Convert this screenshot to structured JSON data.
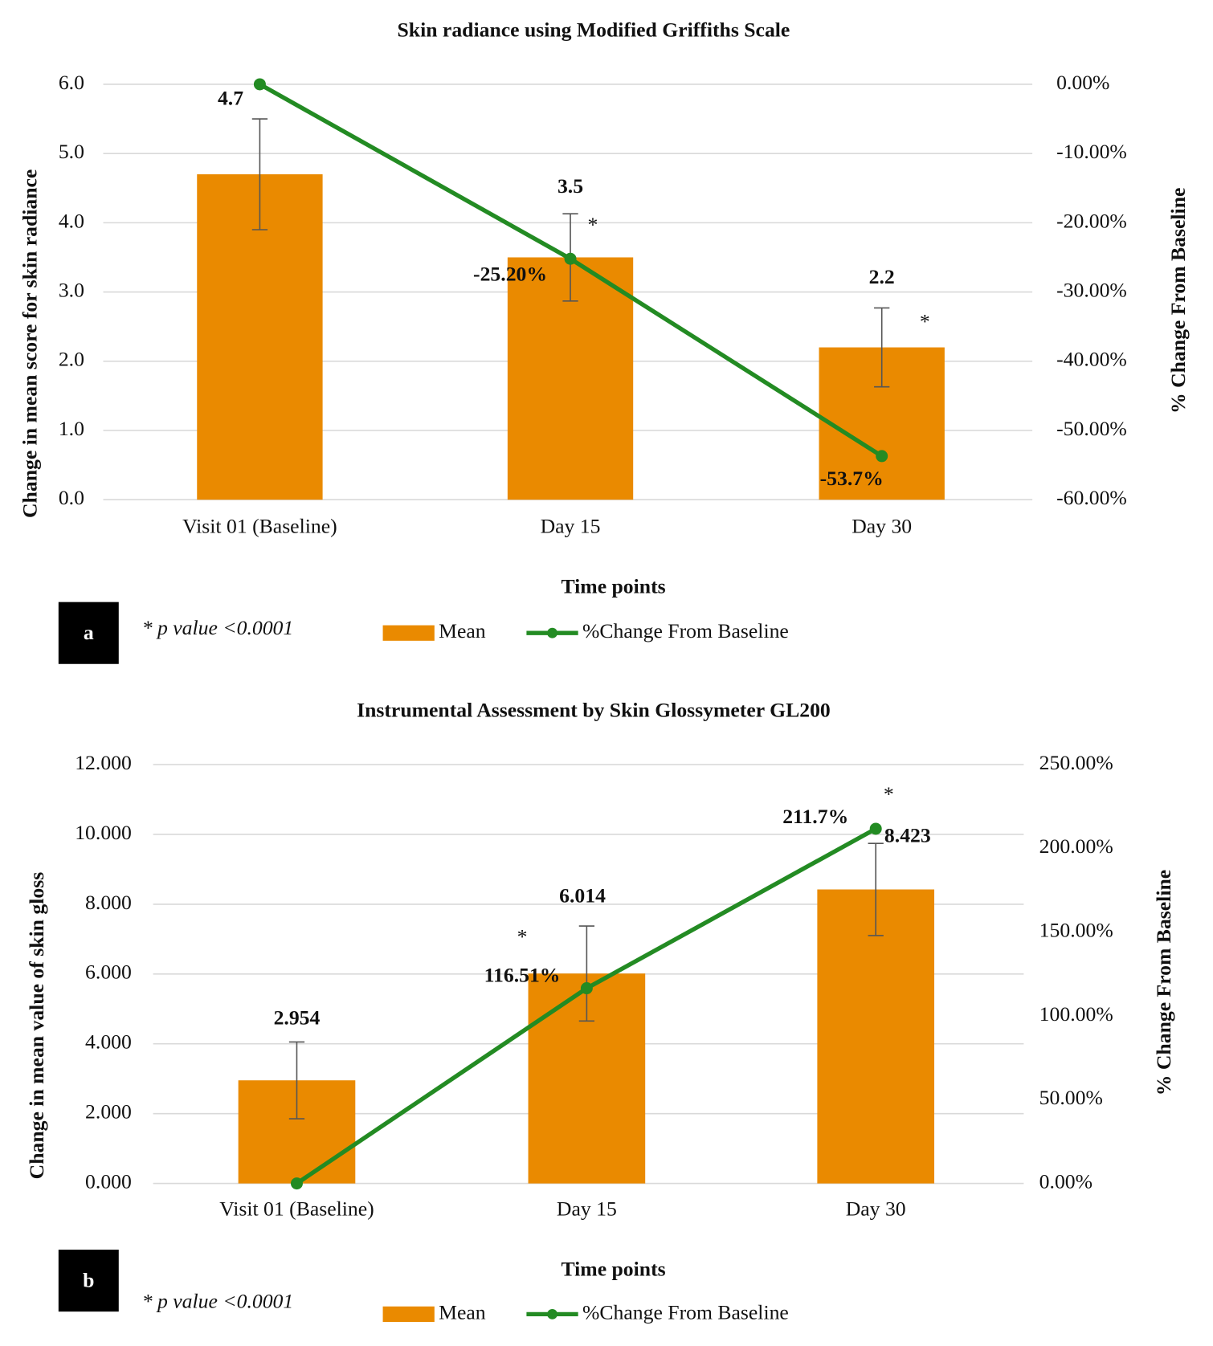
{
  "chart_data": [
    {
      "type": "bar",
      "title": "Skin radiance using Modified Griffiths Scale",
      "panel": "a",
      "note": "* p value <0.0001",
      "x_label": "Time points",
      "y_label": "Change in mean  score for skin radiance",
      "y2_label": "% Change From Baseline",
      "categories": [
        "Visit 01 (Baseline)",
        "Day 15",
        "Day 30"
      ],
      "significance": [
        null,
        "*",
        "*"
      ],
      "series": [
        {
          "name": "Mean",
          "type": "bar",
          "color": "#ea8a00",
          "values": [
            4.7,
            3.5,
            2.2
          ],
          "errors": [
            0.8,
            0.63,
            0.57
          ]
        },
        {
          "name": "%Change From Baseline",
          "type": "line",
          "axis": "y2",
          "color": "#238b23",
          "values": [
            0,
            -25.2,
            -53.7
          ],
          "value_labels": [
            null,
            "-25.20%",
            "-53.7%"
          ]
        }
      ],
      "ylim": [
        0,
        6
      ],
      "yticks": [
        {
          "value": 0,
          "label": "0.0"
        },
        {
          "value": 1,
          "label": "1.0"
        },
        {
          "value": 2,
          "label": "2.0"
        },
        {
          "value": 3,
          "label": "3.0"
        },
        {
          "value": 4,
          "label": "4.0"
        },
        {
          "value": 5,
          "label": "5.0"
        },
        {
          "value": 6,
          "label": "6.0"
        }
      ],
      "y2lim": [
        -60,
        0
      ],
      "y2ticks": [
        {
          "value": -60,
          "label": "-60.00%"
        },
        {
          "value": -50,
          "label": "-50.00%"
        },
        {
          "value": -40,
          "label": "-40.00%"
        },
        {
          "value": -30,
          "label": "-30.00%"
        },
        {
          "value": -20,
          "label": "-20.00%"
        },
        {
          "value": -10,
          "label": "-10.00%"
        },
        {
          "value": 0,
          "label": "0.00%"
        }
      ],
      "grid": true,
      "legend": "bottom"
    },
    {
      "type": "bar",
      "title": "Instrumental Assessment by Skin Glossymeter GL200",
      "panel": "b",
      "note": "* p value <0.0001",
      "x_label": "Time points",
      "y_label": "Change in mean  value  of skin gloss",
      "y2_label": "% Change From Baseline",
      "categories": [
        "Visit 01 (Baseline)",
        "Day 15",
        "Day 30"
      ],
      "significance": [
        null,
        "*",
        "*"
      ],
      "series": [
        {
          "name": "Mean",
          "type": "bar",
          "color": "#ea8a00",
          "values": [
            2.954,
            6.014,
            8.423
          ],
          "errors": [
            1.1,
            1.36,
            1.32
          ]
        },
        {
          "name": "%Change From Baseline",
          "type": "line",
          "axis": "y2",
          "color": "#238b23",
          "values": [
            0,
            116.51,
            211.7
          ],
          "value_labels": [
            null,
            "116.51%",
            "211.7%"
          ]
        }
      ],
      "ylim": [
        0,
        12
      ],
      "yticks": [
        {
          "value": 0,
          "label": "0.000"
        },
        {
          "value": 2,
          "label": "2.000"
        },
        {
          "value": 4,
          "label": "4.000"
        },
        {
          "value": 6,
          "label": "6.000"
        },
        {
          "value": 8,
          "label": "8.000"
        },
        {
          "value": 10,
          "label": "10.000"
        },
        {
          "value": 12,
          "label": "12.000"
        }
      ],
      "y2lim": [
        0,
        250
      ],
      "y2ticks": [
        {
          "value": 0,
          "label": "0.00%"
        },
        {
          "value": 50,
          "label": "50.00%"
        },
        {
          "value": 100,
          "label": "100.00%"
        },
        {
          "value": 150,
          "label": "150.00%"
        },
        {
          "value": 200,
          "label": "200.00%"
        },
        {
          "value": 250,
          "label": "250.00%"
        }
      ],
      "grid": true,
      "legend": "bottom"
    }
  ]
}
